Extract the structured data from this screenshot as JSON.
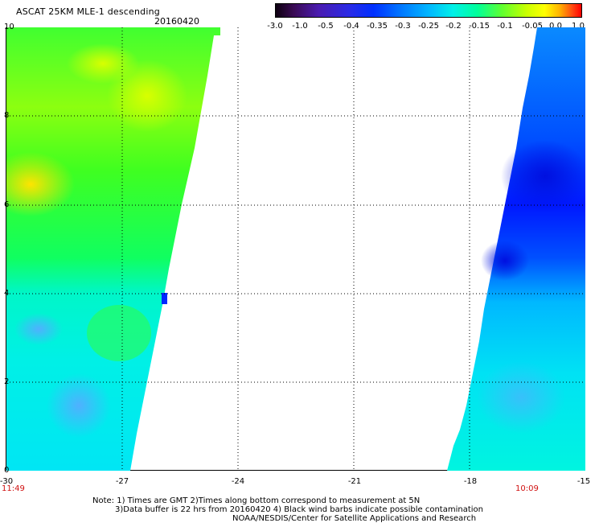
{
  "header": {
    "title": "ASCAT 25KM MLE-1 descending",
    "date": "20160420"
  },
  "colorbar": {
    "ticks": [
      "-3.0",
      "-1.0",
      "-0.5",
      "-0.4",
      "-0.35",
      "-0.3",
      "-0.25",
      "-0.2",
      "-0.15",
      "-0.1",
      "-0.05",
      "0.0",
      "1.0"
    ]
  },
  "axes": {
    "x_ticks": [
      "-30",
      "-27",
      "-24",
      "-21",
      "-18",
      "-15"
    ],
    "y_ticks": [
      "10",
      "8",
      "6",
      "4",
      "2",
      "0"
    ]
  },
  "times": {
    "left": "11:49",
    "right": "10:09"
  },
  "notes": {
    "line1": "Note: 1) Times are GMT 2)Times along bottom correspond to measurement at 5N",
    "line2": "3)Data buffer is 22 hrs from 20160420 4) Black wind barbs indicate possible contamination",
    "line3": "NOAA/NESDIS/Center for Satellite Applications and Research"
  }
}
